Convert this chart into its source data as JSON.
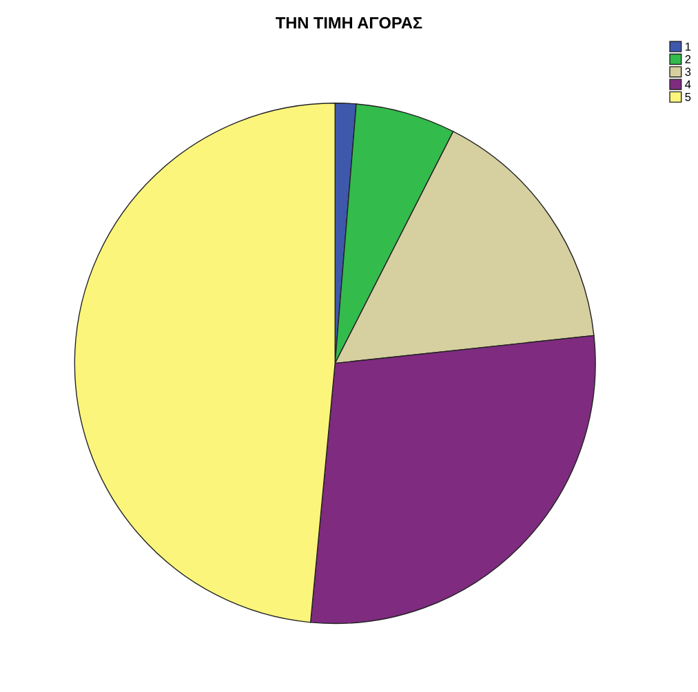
{
  "chart_data": {
    "type": "pie",
    "title": "ΤΗΝ ΤΙΜΗ ΑΓΟΡΑΣ",
    "categories": [
      "1",
      "2",
      "3",
      "4",
      "5"
    ],
    "values": [
      1.3,
      6.2,
      15.8,
      28.2,
      48.5
    ],
    "colors": [
      "#3e58ac",
      "#33bb4c",
      "#d6cf9f",
      "#7f2b80",
      "#fbf57c"
    ],
    "legend": "top right"
  }
}
